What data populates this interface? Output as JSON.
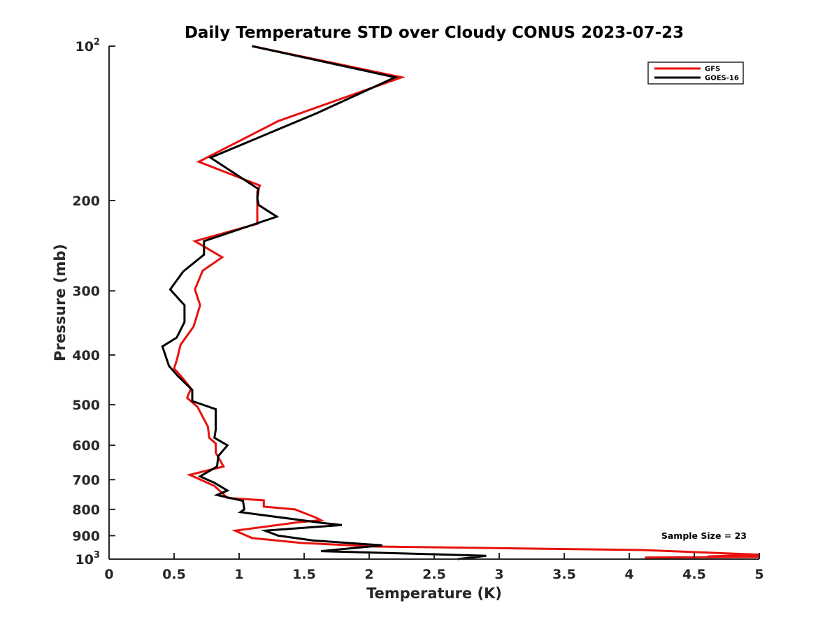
{
  "chart_data": {
    "type": "line",
    "title": "Daily Temperature STD over Cloudy CONUS 2023-07-23",
    "xlabel": "Temperature (K)",
    "ylabel": "Pressure (mb)",
    "xlim": [
      0,
      5
    ],
    "ylim": [
      100,
      1000
    ],
    "yscale": "log",
    "y_reversed": true,
    "grid": false,
    "legend_position": "top-right",
    "x_ticks": [
      0,
      0.5,
      1,
      1.5,
      2,
      2.5,
      3,
      3.5,
      4,
      4.5,
      5
    ],
    "x_tick_labels": [
      "0",
      "0.5",
      "1",
      "1.5",
      "2",
      "2.5",
      "3",
      "3.5",
      "4",
      "4.5",
      "5"
    ],
    "y_ticks": [
      100,
      200,
      300,
      400,
      500,
      600,
      700,
      800,
      900,
      1000
    ],
    "y_tick_labels": [
      {
        "base": "10",
        "sup": "2"
      },
      {
        "base": "200",
        "sup": ""
      },
      {
        "base": "300",
        "sup": ""
      },
      {
        "base": "400",
        "sup": ""
      },
      {
        "base": "500",
        "sup": ""
      },
      {
        "base": "600",
        "sup": ""
      },
      {
        "base": "700",
        "sup": ""
      },
      {
        "base": "800",
        "sup": ""
      },
      {
        "base": "900",
        "sup": ""
      },
      {
        "base": "10",
        "sup": "3"
      }
    ],
    "annotation": "Sample Size = 23",
    "series": [
      {
        "name": "GFS",
        "color": "#e8120e",
        "points": [
          [
            1.1,
            100
          ],
          [
            2.25,
            115
          ],
          [
            1.3,
            140
          ],
          [
            0.69,
            168
          ],
          [
            1.16,
            187
          ],
          [
            1.14,
            192
          ],
          [
            1.14,
            222
          ],
          [
            0.66,
            240
          ],
          [
            0.87,
            258
          ],
          [
            0.72,
            274
          ],
          [
            0.66,
            298
          ],
          [
            0.7,
            320
          ],
          [
            0.65,
            352
          ],
          [
            0.55,
            382
          ],
          [
            0.52,
            410
          ],
          [
            0.5,
            425
          ],
          [
            0.56,
            442
          ],
          [
            0.63,
            465
          ],
          [
            0.6,
            485
          ],
          [
            0.68,
            505
          ],
          [
            0.76,
            552
          ],
          [
            0.77,
            580
          ],
          [
            0.82,
            595
          ],
          [
            0.82,
            620
          ],
          [
            0.88,
            660
          ],
          [
            0.62,
            685
          ],
          [
            0.81,
            720
          ],
          [
            0.91,
            760
          ],
          [
            1.19,
            768
          ],
          [
            1.19,
            790
          ],
          [
            1.43,
            800
          ],
          [
            1.59,
            830
          ],
          [
            1.63,
            840
          ],
          [
            1.52,
            845
          ],
          [
            1.45,
            848
          ],
          [
            0.97,
            880
          ],
          [
            1.1,
            910
          ],
          [
            1.48,
            930
          ],
          [
            2.05,
            945
          ],
          [
            4.1,
            960
          ],
          [
            5.0,
            980
          ],
          [
            4.6,
            988
          ],
          [
            5.0,
            990
          ],
          [
            4.12,
            993
          ]
        ]
      },
      {
        "name": "GOES-16",
        "color": "#000000",
        "points": [
          [
            1.1,
            100
          ],
          [
            2.2,
            115
          ],
          [
            1.6,
            135
          ],
          [
            0.78,
            165
          ],
          [
            1.15,
            190
          ],
          [
            1.14,
            198
          ],
          [
            1.15,
            204
          ],
          [
            1.29,
            215
          ],
          [
            0.73,
            240
          ],
          [
            0.73,
            255
          ],
          [
            0.57,
            275
          ],
          [
            0.47,
            298
          ],
          [
            0.58,
            320
          ],
          [
            0.58,
            345
          ],
          [
            0.52,
            370
          ],
          [
            0.41,
            385
          ],
          [
            0.46,
            420
          ],
          [
            0.53,
            440
          ],
          [
            0.64,
            468
          ],
          [
            0.64,
            492
          ],
          [
            0.82,
            510
          ],
          [
            0.82,
            535
          ],
          [
            0.82,
            560
          ],
          [
            0.81,
            580
          ],
          [
            0.91,
            600
          ],
          [
            0.84,
            630
          ],
          [
            0.83,
            660
          ],
          [
            0.7,
            690
          ],
          [
            0.81,
            710
          ],
          [
            0.91,
            735
          ],
          [
            0.83,
            750
          ],
          [
            1.03,
            770
          ],
          [
            1.04,
            800
          ],
          [
            1.01,
            810
          ],
          [
            1.64,
            850
          ],
          [
            1.79,
            858
          ],
          [
            1.2,
            880
          ],
          [
            1.3,
            900
          ],
          [
            1.57,
            920
          ],
          [
            2.1,
            940
          ],
          [
            1.63,
            965
          ],
          [
            2.9,
            985
          ],
          [
            2.68,
            1000
          ]
        ]
      }
    ]
  }
}
